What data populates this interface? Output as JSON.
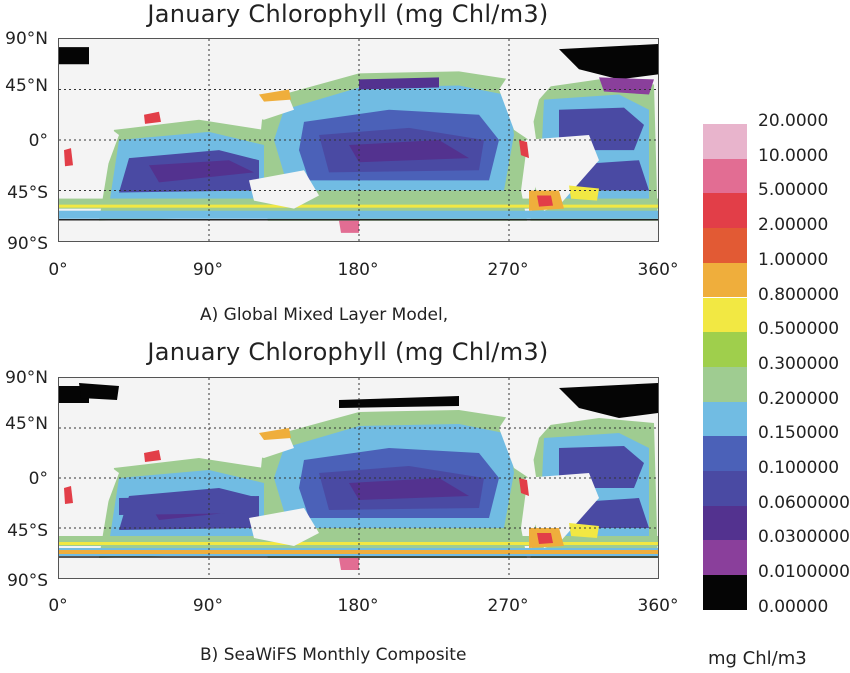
{
  "chart_data": [
    {
      "type": "heatmap",
      "title": "January Chlorophyll (mg Chl/m3)",
      "caption": "A) Global Mixed Layer Model,",
      "x_ticks": [
        "0°",
        "90°",
        "180°",
        "270°",
        "360°"
      ],
      "y_ticks": [
        "90°N",
        "45°N",
        "0°",
        "45°S",
        "90°S"
      ],
      "xlim": [
        0,
        360
      ],
      "ylim": [
        -90,
        90
      ],
      "grid": "dotted"
    },
    {
      "type": "heatmap",
      "title": "January Chlorophyll (mg Chl/m3)",
      "caption": "B) SeaWiFS Monthly Composite",
      "x_ticks": [
        "0°",
        "90°",
        "180°",
        "270°",
        "360°"
      ],
      "y_ticks": [
        "90°N",
        "45°N",
        "0°",
        "45°S",
        "90°S"
      ],
      "xlim": [
        0,
        360
      ],
      "ylim": [
        -90,
        90
      ],
      "grid": "dotted"
    }
  ],
  "legend": {
    "unit": "mg Chl/m3",
    "levels": [
      {
        "label": "20.0000",
        "color": "#e8b4cc"
      },
      {
        "label": "10.0000",
        "color": "#e26d93"
      },
      {
        "label": "5.00000",
        "color": "#e23e48"
      },
      {
        "label": "2.00000",
        "color": "#e25a34"
      },
      {
        "label": "1.00000",
        "color": "#efae3c"
      },
      {
        "label": "0.800000",
        "color": "#f2e843"
      },
      {
        "label": "0.500000",
        "color": "#9fcf4c"
      },
      {
        "label": "0.300000",
        "color": "#9fcc91"
      },
      {
        "label": "0.200000",
        "color": "#71bce3"
      },
      {
        "label": "0.150000",
        "color": "#4b61b8"
      },
      {
        "label": "0.100000",
        "color": "#4a4aa3"
      },
      {
        "label": "0.0600000",
        "color": "#53328f"
      },
      {
        "label": "0.0300000",
        "color": "#8a3f9b"
      },
      {
        "label": "0.0100000",
        "color": "#050505"
      },
      {
        "label": "0.00000",
        "color": ""
      }
    ]
  },
  "colors": {
    "land": "#f4f4f4",
    "background": "#ffffff"
  }
}
